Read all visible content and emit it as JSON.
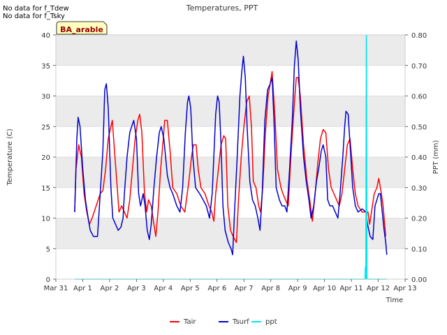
{
  "notes": [
    "No data for f_Tdew",
    "No data for f_Tsky"
  ],
  "site_label": "BA_arable",
  "colors": {
    "Tair": "#ff0000",
    "Tsurf": "#0000cc",
    "ppt": "#00e5ee",
    "band": "#ebebeb",
    "site_bg": "#ffffc0",
    "site_text": "#990000"
  },
  "chart_data": {
    "type": "line",
    "title": "Temperatures, PPT",
    "xlabel": "Time",
    "ylabel": "Temperature (C)",
    "y2label": "PPT (mm)",
    "xlim": [
      0,
      13
    ],
    "ylim": [
      0,
      40
    ],
    "y2lim": [
      0,
      0.8
    ],
    "x_ticks": [
      {
        "v": 0,
        "label": "Mar 31"
      },
      {
        "v": 1,
        "label": "Apr 1"
      },
      {
        "v": 2,
        "label": "Apr 2"
      },
      {
        "v": 3,
        "label": "Apr 3"
      },
      {
        "v": 4,
        "label": "Apr 4"
      },
      {
        "v": 5,
        "label": "Apr 5"
      },
      {
        "v": 6,
        "label": "Apr 6"
      },
      {
        "v": 7,
        "label": "Apr 7"
      },
      {
        "v": 8,
        "label": "Apr 8"
      },
      {
        "v": 9,
        "label": "Apr 9"
      },
      {
        "v": 10,
        "label": "Apr 10"
      },
      {
        "v": 11,
        "label": "Apr 11"
      },
      {
        "v": 12,
        "label": "Apr 12"
      },
      {
        "v": 13,
        "label": "Apr 13"
      }
    ],
    "y_ticks": [
      0,
      5,
      10,
      15,
      20,
      25,
      30,
      35,
      40
    ],
    "y2_ticks": [
      "0.00",
      "0.10",
      "0.20",
      "0.30",
      "0.40",
      "0.50",
      "0.60",
      "0.70",
      "0.80"
    ],
    "grid": true,
    "legend_position": "bottom-center",
    "series": [
      {
        "name": "Tair",
        "axis": "left",
        "points": [
          [
            0.7,
            11
          ],
          [
            0.75,
            18
          ],
          [
            0.8,
            20
          ],
          [
            0.85,
            22
          ],
          [
            0.95,
            20
          ],
          [
            1.05,
            14
          ],
          [
            1.15,
            11
          ],
          [
            1.25,
            9
          ],
          [
            1.35,
            10
          ],
          [
            1.5,
            12
          ],
          [
            1.65,
            14
          ],
          [
            1.75,
            14.5
          ],
          [
            1.85,
            18
          ],
          [
            1.95,
            23
          ],
          [
            2.05,
            25
          ],
          [
            2.1,
            26
          ],
          [
            2.2,
            20
          ],
          [
            2.3,
            14
          ],
          [
            2.35,
            11
          ],
          [
            2.45,
            12
          ],
          [
            2.55,
            11
          ],
          [
            2.65,
            10
          ],
          [
            2.75,
            13
          ],
          [
            2.85,
            18
          ],
          [
            2.95,
            23
          ],
          [
            3.05,
            26
          ],
          [
            3.12,
            27
          ],
          [
            3.2,
            24
          ],
          [
            3.3,
            14
          ],
          [
            3.38,
            11
          ],
          [
            3.45,
            13
          ],
          [
            3.55,
            12
          ],
          [
            3.65,
            9
          ],
          [
            3.72,
            7
          ],
          [
            3.8,
            11
          ],
          [
            3.9,
            18
          ],
          [
            4.0,
            23
          ],
          [
            4.05,
            26
          ],
          [
            4.15,
            26
          ],
          [
            4.25,
            21
          ],
          [
            4.35,
            15
          ],
          [
            4.5,
            14
          ],
          [
            4.65,
            12
          ],
          [
            4.8,
            11
          ],
          [
            4.95,
            16
          ],
          [
            5.05,
            20
          ],
          [
            5.12,
            22
          ],
          [
            5.22,
            22
          ],
          [
            5.3,
            18
          ],
          [
            5.4,
            15
          ],
          [
            5.55,
            14
          ],
          [
            5.7,
            12
          ],
          [
            5.8,
            11
          ],
          [
            5.88,
            9.5
          ],
          [
            5.95,
            14
          ],
          [
            6.05,
            18
          ],
          [
            6.15,
            22
          ],
          [
            6.25,
            23.5
          ],
          [
            6.32,
            23
          ],
          [
            6.4,
            12
          ],
          [
            6.5,
            8
          ],
          [
            6.6,
            7
          ],
          [
            6.72,
            6
          ],
          [
            6.8,
            13
          ],
          [
            6.9,
            20
          ],
          [
            7.0,
            25
          ],
          [
            7.1,
            29
          ],
          [
            7.2,
            30
          ],
          [
            7.28,
            25
          ],
          [
            7.35,
            16
          ],
          [
            7.45,
            15
          ],
          [
            7.55,
            12
          ],
          [
            7.62,
            11
          ],
          [
            7.7,
            15
          ],
          [
            7.8,
            24
          ],
          [
            7.9,
            30
          ],
          [
            7.98,
            32
          ],
          [
            8.05,
            34
          ],
          [
            8.15,
            27
          ],
          [
            8.25,
            18
          ],
          [
            8.38,
            15
          ],
          [
            8.45,
            14
          ],
          [
            8.55,
            13
          ],
          [
            8.65,
            12
          ],
          [
            8.75,
            20
          ],
          [
            8.85,
            27
          ],
          [
            8.95,
            33
          ],
          [
            9.02,
            33
          ],
          [
            9.1,
            30
          ],
          [
            9.22,
            22
          ],
          [
            9.35,
            16
          ],
          [
            9.45,
            13
          ],
          [
            9.55,
            9.5
          ],
          [
            9.65,
            14
          ],
          [
            9.75,
            19
          ],
          [
            9.85,
            23
          ],
          [
            9.95,
            24.5
          ],
          [
            10.05,
            24
          ],
          [
            10.15,
            18
          ],
          [
            10.25,
            15
          ],
          [
            10.35,
            14
          ],
          [
            10.45,
            13
          ],
          [
            10.55,
            12
          ],
          [
            10.65,
            14
          ],
          [
            10.75,
            18
          ],
          [
            10.85,
            22
          ],
          [
            10.95,
            23
          ],
          [
            11.05,
            18
          ],
          [
            11.15,
            14
          ],
          [
            11.25,
            12
          ],
          [
            11.4,
            11
          ],
          [
            11.55,
            11
          ],
          [
            11.62,
            11
          ],
          [
            11.68,
            9
          ],
          [
            11.75,
            11
          ],
          [
            11.85,
            14
          ],
          [
            11.95,
            15
          ],
          [
            12.02,
            16.5
          ],
          [
            12.1,
            14.5
          ],
          [
            12.18,
            12
          ],
          [
            12.28,
            7
          ]
        ]
      },
      {
        "name": "Tsurf",
        "axis": "left",
        "points": [
          [
            0.7,
            11
          ],
          [
            0.78,
            23
          ],
          [
            0.83,
            26.5
          ],
          [
            0.9,
            25
          ],
          [
            1.0,
            18
          ],
          [
            1.1,
            13
          ],
          [
            1.2,
            10
          ],
          [
            1.28,
            8
          ],
          [
            1.4,
            7
          ],
          [
            1.55,
            7
          ],
          [
            1.65,
            14
          ],
          [
            1.75,
            21
          ],
          [
            1.82,
            31
          ],
          [
            1.88,
            32
          ],
          [
            1.95,
            28
          ],
          [
            2.05,
            15
          ],
          [
            2.12,
            10
          ],
          [
            2.22,
            9
          ],
          [
            2.32,
            8
          ],
          [
            2.42,
            8.5
          ],
          [
            2.5,
            10
          ],
          [
            2.55,
            14
          ],
          [
            2.65,
            20
          ],
          [
            2.75,
            24
          ],
          [
            2.82,
            25
          ],
          [
            2.9,
            26
          ],
          [
            3.0,
            23
          ],
          [
            3.08,
            14
          ],
          [
            3.15,
            12
          ],
          [
            3.25,
            14
          ],
          [
            3.32,
            12
          ],
          [
            3.4,
            8
          ],
          [
            3.48,
            6.5
          ],
          [
            3.55,
            9
          ],
          [
            3.65,
            15
          ],
          [
            3.75,
            20
          ],
          [
            3.85,
            24
          ],
          [
            3.92,
            25
          ],
          [
            4.02,
            23
          ],
          [
            4.15,
            17
          ],
          [
            4.25,
            15
          ],
          [
            4.35,
            14
          ],
          [
            4.5,
            12
          ],
          [
            4.62,
            11
          ],
          [
            4.72,
            15
          ],
          [
            4.82,
            24
          ],
          [
            4.9,
            29
          ],
          [
            4.95,
            30
          ],
          [
            5.02,
            28
          ],
          [
            5.1,
            20
          ],
          [
            5.2,
            15
          ],
          [
            5.35,
            14
          ],
          [
            5.48,
            13
          ],
          [
            5.6,
            12
          ],
          [
            5.72,
            10
          ],
          [
            5.82,
            14
          ],
          [
            5.9,
            22
          ],
          [
            5.95,
            27
          ],
          [
            6.02,
            30
          ],
          [
            6.08,
            29
          ],
          [
            6.15,
            22
          ],
          [
            6.22,
            12
          ],
          [
            6.3,
            8
          ],
          [
            6.42,
            6
          ],
          [
            6.52,
            5
          ],
          [
            6.58,
            4
          ],
          [
            6.65,
            11
          ],
          [
            6.75,
            20
          ],
          [
            6.85,
            30
          ],
          [
            6.92,
            34
          ],
          [
            6.98,
            36.5
          ],
          [
            7.05,
            33
          ],
          [
            7.12,
            25
          ],
          [
            7.22,
            16
          ],
          [
            7.32,
            13
          ],
          [
            7.42,
            12
          ],
          [
            7.52,
            10
          ],
          [
            7.6,
            8
          ],
          [
            7.68,
            14
          ],
          [
            7.78,
            26
          ],
          [
            7.88,
            31
          ],
          [
            7.98,
            32
          ],
          [
            8.05,
            33
          ],
          [
            8.12,
            26
          ],
          [
            8.2,
            15
          ],
          [
            8.32,
            13
          ],
          [
            8.42,
            12
          ],
          [
            8.52,
            12
          ],
          [
            8.6,
            11
          ],
          [
            8.7,
            18
          ],
          [
            8.8,
            26
          ],
          [
            8.88,
            35
          ],
          [
            8.95,
            39
          ],
          [
            9.02,
            36
          ],
          [
            9.1,
            28
          ],
          [
            9.22,
            20
          ],
          [
            9.32,
            16
          ],
          [
            9.42,
            13
          ],
          [
            9.5,
            10
          ],
          [
            9.6,
            12
          ],
          [
            9.7,
            16
          ],
          [
            9.78,
            18
          ],
          [
            9.88,
            21
          ],
          [
            9.95,
            22
          ],
          [
            10.05,
            20
          ],
          [
            10.12,
            13
          ],
          [
            10.2,
            12
          ],
          [
            10.3,
            12
          ],
          [
            10.4,
            11
          ],
          [
            10.5,
            10
          ],
          [
            10.58,
            14
          ],
          [
            10.68,
            20
          ],
          [
            10.75,
            25
          ],
          [
            10.8,
            27.5
          ],
          [
            10.88,
            27
          ],
          [
            10.95,
            22
          ],
          [
            11.05,
            15
          ],
          [
            11.15,
            12
          ],
          [
            11.25,
            11
          ],
          [
            11.4,
            11.5
          ],
          [
            11.55,
            11
          ],
          [
            11.6,
            9
          ],
          [
            11.7,
            7
          ],
          [
            11.8,
            6.5
          ],
          [
            11.88,
            12
          ],
          [
            11.95,
            13
          ],
          [
            12.02,
            14
          ],
          [
            12.08,
            14
          ],
          [
            12.15,
            11
          ],
          [
            12.22,
            8
          ],
          [
            12.28,
            6
          ],
          [
            12.32,
            4
          ]
        ]
      },
      {
        "name": "ppt",
        "axis": "right",
        "points": [
          [
            0.7,
            0
          ],
          [
            11.51,
            0
          ],
          [
            11.52,
            0.04
          ],
          [
            11.54,
            0
          ],
          [
            11.56,
            0.8
          ],
          [
            11.58,
            0
          ],
          [
            12.32,
            0
          ]
        ]
      }
    ]
  }
}
